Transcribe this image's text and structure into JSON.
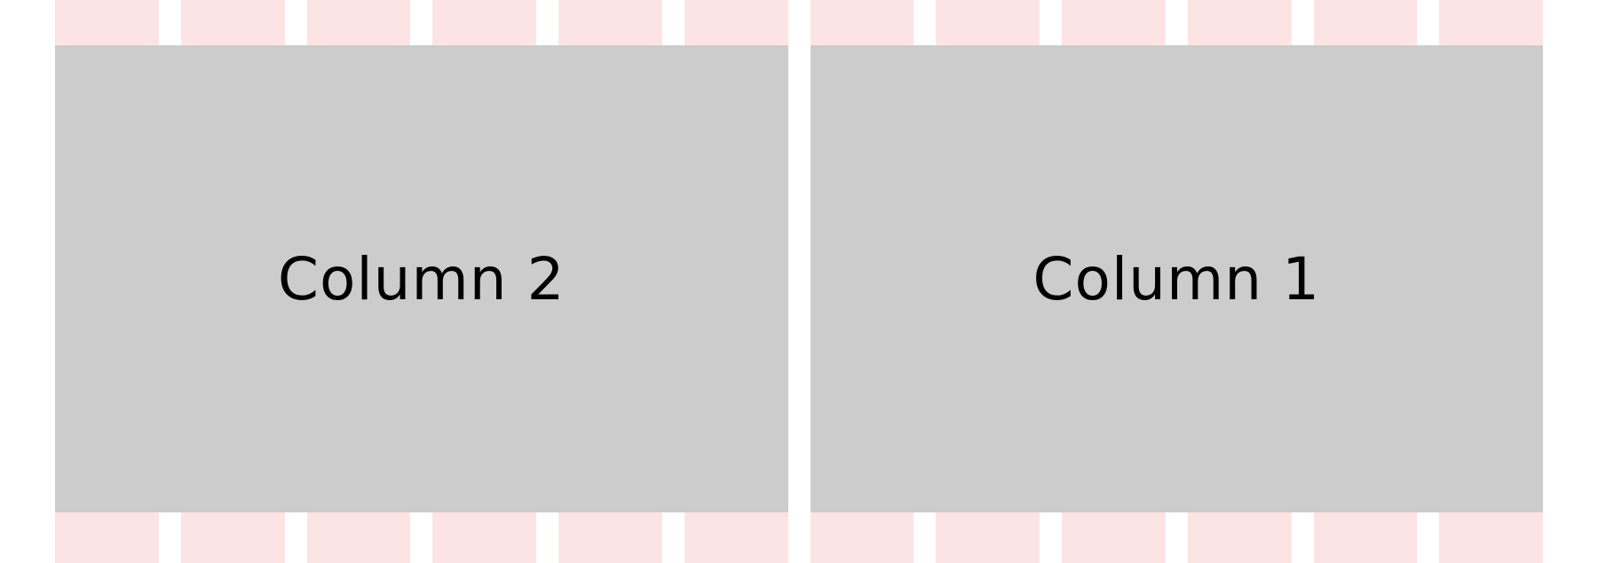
{
  "grid": {
    "column_count": 12,
    "column_color": "#fde4e4"
  },
  "columns": [
    {
      "label": "Column 2"
    },
    {
      "label": "Column 1"
    }
  ],
  "colors": {
    "background": "#ffffff",
    "column_fill": "#cccccc",
    "text": "#000000"
  }
}
